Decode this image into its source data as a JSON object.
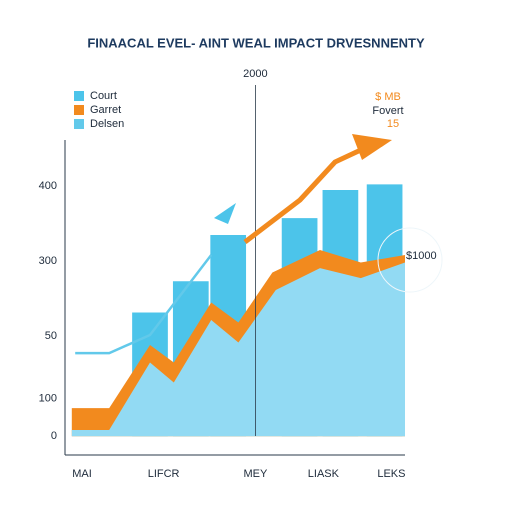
{
  "chart_data": {
    "type": "combo",
    "title": "FINAACAL EVEL- AINT WEAL IMPACT DRVESNNENTY",
    "xlim": [
      0,
      100
    ],
    "xticks": [
      {
        "value": 5,
        "label": "MAI"
      },
      {
        "value": 29,
        "label": "LIFCR"
      },
      {
        "value": 56,
        "label": "MEY"
      },
      {
        "value": 76,
        "label": "LIASK"
      },
      {
        "value": 96,
        "label": "LEKS"
      }
    ],
    "ylim": [
      -30,
      474
    ],
    "yticks": [
      0,
      {
        "value": 60,
        "label": "100"
      },
      {
        "value": 160,
        "label": "50"
      },
      {
        "value": 280,
        "label": "300"
      },
      400
    ],
    "annotations": [
      {
        "text": "2000",
        "x": 56
      },
      {
        "text": "$ MB",
        "color": "#f28a1e"
      },
      {
        "text": "Fovert",
        "color": "#1d2a3a"
      },
      {
        "text": "15",
        "color": "#f28a1e"
      },
      {
        "text": "$1000",
        "color": "#1d2a3a"
      }
    ],
    "series": [
      {
        "name": "Court",
        "type": "bar",
        "color": "#4cc4ea",
        "x": [
          25,
          37,
          48,
          69,
          81,
          94
        ],
        "values": [
          198,
          248,
          322,
          349,
          394,
          403
        ]
      },
      {
        "name": "Garret",
        "type": "area",
        "color": "#f28a1e",
        "x": [
          2,
          13,
          25,
          32,
          43,
          51,
          61,
          75,
          87,
          100
        ],
        "values": [
          45,
          45,
          146,
          118,
          214,
          182,
          262,
          298,
          278,
          290
        ]
      },
      {
        "type": "area",
        "color": "#92daf3",
        "x": [
          2,
          13,
          25,
          32,
          43,
          51,
          62,
          75,
          87,
          100
        ],
        "values": [
          10,
          10,
          118,
          86,
          186,
          150,
          234,
          269,
          253,
          278
        ]
      },
      {
        "name": "Delsen",
        "type": "line",
        "color": "#62c9ea",
        "x": [
          3,
          13,
          25,
          43
        ],
        "values": [
          133,
          133,
          162,
          290
        ]
      }
    ]
  }
}
